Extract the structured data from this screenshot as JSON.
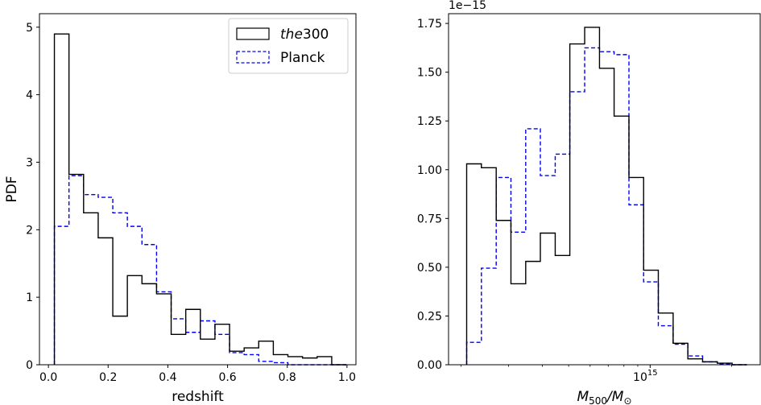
{
  "chart_data": [
    {
      "type": "histogram",
      "xlabel": "redshift",
      "ylabel": "PDF",
      "xlim": [
        -0.03,
        1.03
      ],
      "ylim": [
        0,
        5.2
      ],
      "xticks": [
        0.0,
        0.2,
        0.4,
        0.6,
        0.8,
        1.0
      ],
      "xtick_labels": [
        "0.0",
        "0.2",
        "0.4",
        "0.6",
        "0.8",
        "1.0"
      ],
      "yticks": [
        0,
        1,
        2,
        3,
        4,
        5
      ],
      "ytick_labels": [
        "0",
        "1",
        "2",
        "3",
        "4",
        "5"
      ],
      "legend": {
        "position": "top-right"
      },
      "series": [
        {
          "name": "the300",
          "name_parts": [
            "the",
            "300"
          ],
          "color": "#000000",
          "linestyle": "solid",
          "bin_edges": [
            0.02,
            0.0689,
            0.1178,
            0.1667,
            0.2156,
            0.2644,
            0.3133,
            0.3622,
            0.4111,
            0.46,
            0.5089,
            0.5578,
            0.6067,
            0.6556,
            0.7044,
            0.7533,
            0.8022,
            0.8511,
            0.9,
            0.9489,
            0.9978
          ],
          "values": [
            4.9,
            2.82,
            2.25,
            1.88,
            0.72,
            1.32,
            1.2,
            1.05,
            0.45,
            0.82,
            0.38,
            0.6,
            0.2,
            0.25,
            0.35,
            0.15,
            0.12,
            0.1,
            0.12,
            0.0
          ]
        },
        {
          "name": "Planck",
          "color": "#0000ff",
          "linestyle": "dashed",
          "bin_edges": [
            0.02,
            0.0689,
            0.1178,
            0.1667,
            0.2156,
            0.2644,
            0.3133,
            0.3622,
            0.4111,
            0.46,
            0.5089,
            0.5578,
            0.6067,
            0.6556,
            0.7044,
            0.7533,
            0.8022,
            0.8511,
            0.9,
            0.9489,
            0.9978
          ],
          "values": [
            2.05,
            2.8,
            2.52,
            2.48,
            2.25,
            2.05,
            1.78,
            1.08,
            0.68,
            0.48,
            0.65,
            0.45,
            0.18,
            0.15,
            0.05,
            0.03,
            0.0,
            0.0,
            0.0,
            0.0
          ]
        }
      ]
    },
    {
      "type": "histogram",
      "xlabel_parts": [
        "M",
        "500",
        "/M",
        "⊙"
      ],
      "ylabel": "",
      "x_scale": "log",
      "x_range": [
        180000000000000,
        2550000000000000
      ],
      "ylim": [
        0,
        1.8e-15
      ],
      "offset_text": "1e−15",
      "yticks": [
        0,
        2.5e-16,
        5e-16,
        7.5e-16,
        1e-15,
        1.25e-15,
        1.5e-15,
        1.75e-15
      ],
      "ytick_labels": [
        "0.00",
        "0.25",
        "0.50",
        "0.75",
        "1.00",
        "1.25",
        "1.50",
        "1.75"
      ],
      "xticks": [
        1000000000000000.0
      ],
      "xtick_labels": [
        {
          "base": "10",
          "exp": "15"
        }
      ],
      "series": [
        {
          "name": "the300",
          "color": "#000000",
          "linestyle": "solid",
          "bin_edges": [
            210000000000000,
            238000000000000,
            270000000000000,
            306000000000000,
            347000000000000,
            393000000000000,
            446000000000000,
            505000000000000,
            573000000000000,
            650000000000000,
            736000000000000,
            835000000000000,
            946000000000000,
            1072000000000000,
            1216000000000000,
            1378000000000000,
            1562000000000000,
            1771000000000000,
            2008000000000000,
            2276000000000000
          ],
          "values": [
            1.03e-15,
            1.01e-15,
            7.4e-16,
            4.15e-16,
            5.3e-16,
            6.75e-16,
            5.6e-16,
            1.645e-15,
            1.73e-15,
            1.52e-15,
            1.275e-15,
            9.6e-16,
            4.85e-16,
            2.65e-16,
            1.1e-16,
            3e-17,
            1.5e-17,
            8e-18,
            0.0
          ]
        },
        {
          "name": "Planck",
          "color": "#0000ff",
          "linestyle": "dashed",
          "bin_edges": [
            210000000000000,
            238000000000000,
            270000000000000,
            306000000000000,
            347000000000000,
            393000000000000,
            446000000000000,
            505000000000000,
            573000000000000,
            650000000000000,
            736000000000000,
            835000000000000,
            946000000000000,
            1072000000000000,
            1216000000000000,
            1378000000000000,
            1562000000000000,
            1771000000000000,
            2008000000000000,
            2276000000000000
          ],
          "values": [
            1.15e-16,
            4.95e-16,
            9.6e-16,
            6.8e-16,
            1.21e-15,
            9.7e-16,
            1.08e-15,
            1.4e-15,
            1.625e-15,
            1.605e-15,
            1.59e-15,
            8.2e-16,
            4.25e-16,
            2e-16,
            1.05e-16,
            4.5e-17,
            1.5e-17,
            5e-18,
            0.0
          ]
        }
      ]
    }
  ]
}
